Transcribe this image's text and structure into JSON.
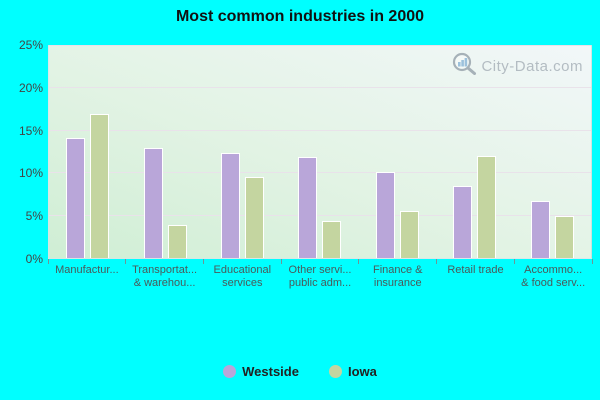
{
  "title": "Most common industries in 2000",
  "watermark": {
    "text": "City-Data.com",
    "icon": "magnifier-bar-chart-icon"
  },
  "colors": {
    "background": "#00ffff",
    "westside_bar": "#b9a6d9",
    "iowa_bar": "#c4d5a0",
    "gridline": "#e9e2ea",
    "axis_text": "#444444",
    "category_text": "#4a5a5a",
    "watermark_text": "#a9b2ba"
  },
  "legend": {
    "items": [
      {
        "label": "Westside",
        "color": "#b9a6d9"
      },
      {
        "label": "Iowa",
        "color": "#c4d5a0"
      }
    ],
    "position": "bottom-center"
  },
  "chart_data": {
    "type": "bar",
    "title": "Most common industries in 2000",
    "categories": [
      "Manufactur...",
      "Transportat... & warehou...",
      "Educational services",
      "Other servi... public adm...",
      "Finance & insurance",
      "Retail trade",
      "Accommo... & food serv..."
    ],
    "category_label_lines": [
      [
        "Manufactur..."
      ],
      [
        "Transportat...",
        "& warehou..."
      ],
      [
        "Educational",
        "services"
      ],
      [
        "Other servi...",
        "public adm..."
      ],
      [
        "Finance &",
        "insurance"
      ],
      [
        "Retail trade"
      ],
      [
        "Accommo...",
        "& food serv..."
      ]
    ],
    "series": [
      {
        "name": "Westside",
        "color": "#b9a6d9",
        "values": [
          14.1,
          13.0,
          12.4,
          11.9,
          10.1,
          8.5,
          6.7
        ]
      },
      {
        "name": "Iowa",
        "color": "#c4d5a0",
        "values": [
          17.0,
          3.9,
          9.6,
          4.4,
          5.5,
          12.0,
          5.0
        ]
      }
    ],
    "ylabel": "",
    "xlabel": "",
    "ylim": [
      0,
      25
    ],
    "y_ticks": [
      "0%",
      "5%",
      "10%",
      "15%",
      "20%",
      "25%"
    ],
    "y_unit": "%",
    "grid": true,
    "legend_position": "bottom"
  }
}
